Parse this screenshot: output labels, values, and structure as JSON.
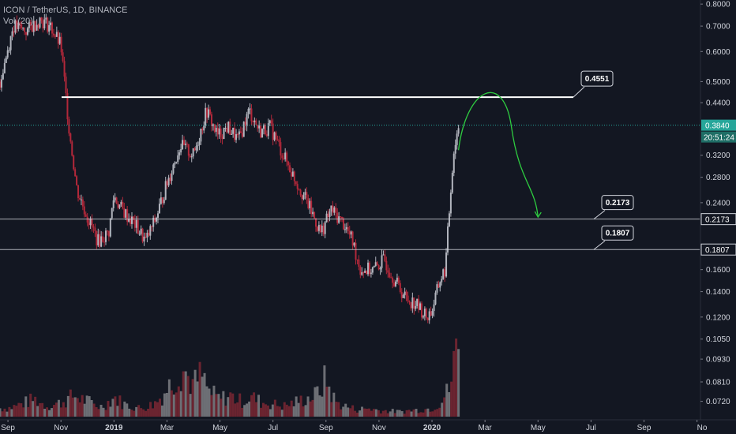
{
  "header": {
    "symbol_line": "ICON / TetherUS, 1D, BINANCE",
    "volume_line": "Vol (20)"
  },
  "colors": {
    "background": "#131722",
    "candle_up": "#b2b5be",
    "candle_down": "#b2283a",
    "volume_up": "#6d6f75",
    "volume_down": "#6b2430",
    "horizontal_line": "#d1d4dc",
    "resistance_line": "#ffffff",
    "last_price_line": "#26a69a",
    "projection_arrow": "#2ecc40",
    "axis_text": "#d1d4dc"
  },
  "chart_data": {
    "type": "candlestick",
    "title": "ICON / TetherUS, 1D, BINANCE",
    "scale": "log",
    "ylim": [
      0.065,
      0.82
    ],
    "y_ticks": [
      "0.8000",
      "0.7000",
      "0.6000",
      "0.5000",
      "0.4400",
      "0.3840",
      "0.3200",
      "0.2800",
      "0.2400",
      "0.2173",
      "0.1807",
      "0.1600",
      "0.1400",
      "0.1200",
      "0.1050",
      "0.0930",
      "0.0810",
      "0.0720"
    ],
    "y_tick_values": [
      0.8,
      0.7,
      0.6,
      0.5,
      0.44,
      0.384,
      0.32,
      0.28,
      0.24,
      0.2173,
      0.1807,
      0.16,
      0.14,
      0.12,
      0.105,
      0.093,
      0.081,
      0.072
    ],
    "x_ticks": [
      "Sep",
      "Nov",
      "2019",
      "Mar",
      "May",
      "Jul",
      "Sep",
      "Nov",
      "2020",
      "Mar",
      "May",
      "Jul",
      "Sep",
      "No"
    ],
    "x_tick_months": [
      0,
      2,
      4,
      6,
      8,
      10,
      12,
      14,
      16,
      18,
      20,
      22,
      24,
      26
    ],
    "x_month_range": [
      -0.3,
      26.1
    ],
    "price_path": [
      [
        -0.3,
        0.5
      ],
      [
        0.2,
        0.7
      ],
      [
        0.7,
        0.68
      ],
      [
        1.2,
        0.73
      ],
      [
        1.6,
        0.7
      ],
      [
        2.0,
        0.62
      ],
      [
        2.3,
        0.38
      ],
      [
        2.6,
        0.26
      ],
      [
        3.0,
        0.22
      ],
      [
        3.4,
        0.19
      ],
      [
        3.8,
        0.2
      ],
      [
        4.0,
        0.25
      ],
      [
        4.3,
        0.23
      ],
      [
        4.8,
        0.21
      ],
      [
        5.2,
        0.19
      ],
      [
        5.6,
        0.22
      ],
      [
        6.0,
        0.27
      ],
      [
        6.5,
        0.34
      ],
      [
        7.0,
        0.32
      ],
      [
        7.5,
        0.42
      ],
      [
        7.9,
        0.36
      ],
      [
        8.3,
        0.38
      ],
      [
        8.7,
        0.35
      ],
      [
        9.1,
        0.42
      ],
      [
        9.5,
        0.37
      ],
      [
        9.9,
        0.38
      ],
      [
        10.3,
        0.33
      ],
      [
        10.8,
        0.28
      ],
      [
        11.3,
        0.24
      ],
      [
        11.8,
        0.2
      ],
      [
        12.2,
        0.23
      ],
      [
        12.7,
        0.21
      ],
      [
        13.0,
        0.19
      ],
      [
        13.3,
        0.16
      ],
      [
        13.8,
        0.16
      ],
      [
        14.2,
        0.17
      ],
      [
        14.6,
        0.15
      ],
      [
        15.0,
        0.135
      ],
      [
        15.4,
        0.13
      ],
      [
        15.8,
        0.12
      ],
      [
        16.0,
        0.125
      ],
      [
        16.3,
        0.15
      ],
      [
        16.5,
        0.16
      ],
      [
        16.8,
        0.32
      ],
      [
        17.0,
        0.384
      ]
    ],
    "volume_bars": [
      [
        0.0,
        12
      ],
      [
        0.5,
        18
      ],
      [
        1.0,
        25
      ],
      [
        1.5,
        15
      ],
      [
        2.0,
        20
      ],
      [
        2.5,
        30
      ],
      [
        3.0,
        22
      ],
      [
        3.5,
        14
      ],
      [
        4.0,
        28
      ],
      [
        4.5,
        16
      ],
      [
        5.0,
        12
      ],
      [
        5.5,
        18
      ],
      [
        6.0,
        40
      ],
      [
        6.3,
        55
      ],
      [
        6.6,
        70
      ],
      [
        7.0,
        45
      ],
      [
        7.3,
        60
      ],
      [
        7.6,
        35
      ],
      [
        8.0,
        25
      ],
      [
        8.4,
        30
      ],
      [
        8.8,
        22
      ],
      [
        9.2,
        28
      ],
      [
        9.6,
        20
      ],
      [
        10.0,
        18
      ],
      [
        10.4,
        15
      ],
      [
        10.8,
        20
      ],
      [
        11.2,
        25
      ],
      [
        11.6,
        30
      ],
      [
        12.0,
        55
      ],
      [
        12.4,
        20
      ],
      [
        12.8,
        14
      ],
      [
        13.2,
        10
      ],
      [
        13.6,
        12
      ],
      [
        14.0,
        9
      ],
      [
        14.4,
        8
      ],
      [
        14.8,
        7
      ],
      [
        15.2,
        9
      ],
      [
        15.6,
        10
      ],
      [
        16.0,
        12
      ],
      [
        16.4,
        25
      ],
      [
        16.7,
        45
      ],
      [
        16.9,
        100
      ]
    ],
    "last_price": {
      "value": 0.384,
      "label": "0.3840",
      "countdown": "20:51:24"
    },
    "horizontal_levels": [
      {
        "value": 0.4551,
        "label": "0.4551",
        "kind": "resistance"
      },
      {
        "value": 0.2173,
        "label": "0.2173",
        "kind": "support"
      },
      {
        "value": 0.1807,
        "label": "0.1807",
        "kind": "support"
      }
    ],
    "projection": {
      "start_month": 17.0,
      "start_value": 0.33,
      "peak_month": 18.1,
      "peak_value": 0.44,
      "end_month": 20.0,
      "end_value": 0.22
    }
  }
}
